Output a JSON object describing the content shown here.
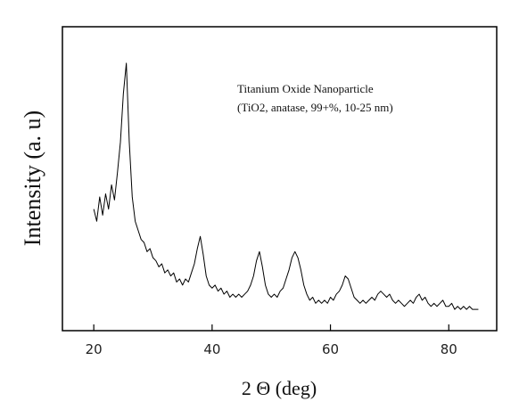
{
  "chart_data": {
    "type": "line",
    "annotation": [
      "Titanium Oxide Nanoparticle",
      "(TiO2, anatase, 99+%, 10-25 nm)"
    ],
    "x_label": "2 Θ (deg)",
    "y_label": "Intensity (a. u)",
    "color": "#000000",
    "xlim": [
      14.7,
      88.1
    ],
    "xticks": [
      20,
      40,
      60,
      80
    ],
    "ylim": [
      0,
      100
    ],
    "x": [
      20,
      20.5,
      21,
      21.5,
      22,
      22.5,
      23,
      23.5,
      24,
      24.5,
      25,
      25.5,
      26,
      26.5,
      27,
      27.5,
      28,
      28.5,
      29,
      29.5,
      30,
      30.5,
      31,
      31.5,
      32,
      32.5,
      33,
      33.5,
      34,
      34.5,
      35,
      35.5,
      36,
      36.5,
      37,
      37.5,
      38,
      38.5,
      39,
      39.5,
      40,
      40.5,
      41,
      41.5,
      42,
      42.5,
      43,
      43.5,
      44,
      44.5,
      45,
      45.5,
      46,
      46.5,
      47,
      47.5,
      48,
      48.5,
      49,
      49.5,
      50,
      50.5,
      51,
      51.5,
      52,
      52.5,
      53,
      53.5,
      54,
      54.5,
      55,
      55.5,
      56,
      56.5,
      57,
      57.5,
      58,
      58.5,
      59,
      59.5,
      60,
      60.5,
      61,
      61.5,
      62,
      62.5,
      63,
      63.5,
      64,
      64.5,
      65,
      65.5,
      66,
      66.5,
      67,
      67.5,
      68,
      68.5,
      69,
      69.5,
      70,
      70.5,
      71,
      71.5,
      72,
      72.5,
      73,
      73.5,
      74,
      74.5,
      75,
      75.5,
      76,
      76.5,
      77,
      77.5,
      78,
      78.5,
      79,
      79.5,
      80,
      80.5,
      81,
      81.5,
      82,
      82.5,
      83,
      83.5,
      84,
      84.5,
      85
    ],
    "values": [
      40,
      36,
      44,
      38,
      45,
      40,
      48,
      43,
      52,
      62,
      78,
      88,
      62,
      44,
      36,
      33,
      30,
      29,
      26,
      27,
      24,
      23,
      21,
      22,
      19,
      20,
      18,
      19,
      16,
      17,
      15,
      17,
      16,
      19,
      22,
      27,
      31,
      25,
      18,
      15,
      14,
      15,
      13,
      14,
      12,
      13,
      11,
      12,
      11,
      12,
      11,
      12,
      13,
      15,
      18,
      23,
      26,
      21,
      15,
      12,
      11,
      12,
      11,
      13,
      14,
      17,
      20,
      24,
      26,
      24,
      20,
      15,
      12,
      10,
      11,
      9,
      10,
      9,
      10,
      9,
      11,
      10,
      12,
      13,
      15,
      18,
      17,
      14,
      11,
      10,
      9,
      10,
      9,
      10,
      11,
      10,
      12,
      13,
      12,
      11,
      12,
      10,
      9,
      10,
      9,
      8,
      9,
      10,
      9,
      11,
      12,
      10,
      11,
      9,
      8,
      9,
      8,
      9,
      10,
      8,
      8,
      9,
      7,
      8,
      7,
      8,
      7,
      8,
      7,
      7,
      7
    ]
  }
}
